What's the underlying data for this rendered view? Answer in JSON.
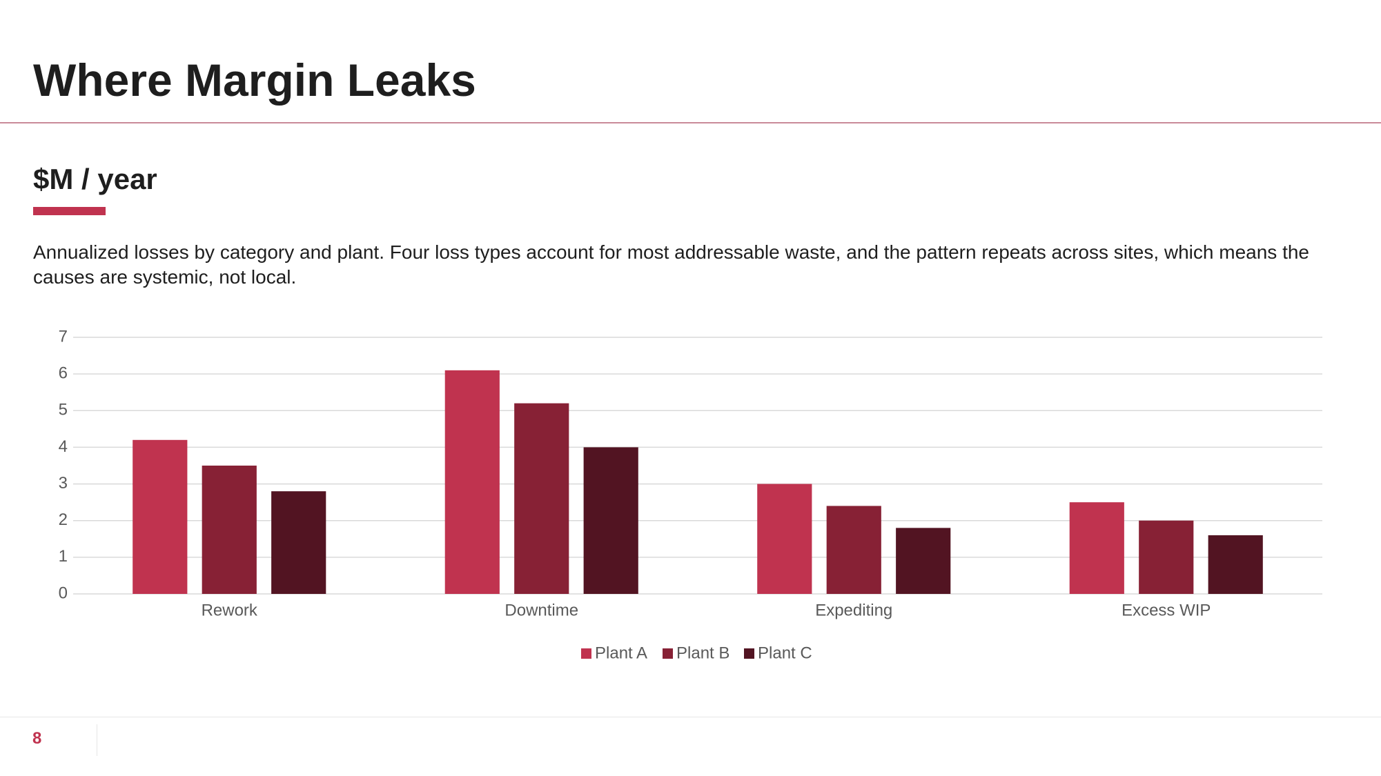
{
  "header": {
    "title": "Where Margin Leaks"
  },
  "subtitle": "$M / year",
  "description": "Annualized losses by category and plant. Four loss types account for most addressable waste, and the pattern repeats across sites, which means the causes are systemic, not local.",
  "chart_data": {
    "type": "bar",
    "categories": [
      "Rework",
      "Downtime",
      "Expediting",
      "Excess WIP"
    ],
    "series": [
      {
        "name": "Plant A",
        "color": "#c0334f",
        "values": [
          4.2,
          6.1,
          3.0,
          2.5
        ]
      },
      {
        "name": "Plant B",
        "color": "#872135",
        "values": [
          3.5,
          5.2,
          2.4,
          2.0
        ]
      },
      {
        "name": "Plant C",
        "color": "#521422",
        "values": [
          2.8,
          4.0,
          1.8,
          1.6
        ]
      }
    ],
    "ylim": [
      0,
      7
    ],
    "yticks": [
      0,
      1,
      2,
      3,
      4,
      5,
      6,
      7
    ],
    "grid": true,
    "legend": "bottom"
  },
  "footer": {
    "page_number": 8
  }
}
